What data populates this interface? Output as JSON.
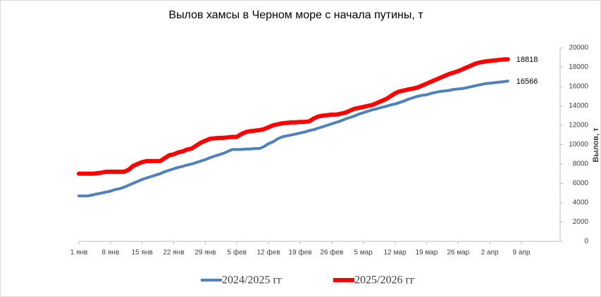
{
  "chart_data": {
    "type": "line",
    "title": "Вылов хамсы в Черном море с начала путины, т",
    "y_label": "Вылов, т",
    "y_axis_side": "right",
    "categories": [
      "1 янв",
      null,
      null,
      null,
      null,
      null,
      null,
      "8 янв",
      null,
      null,
      null,
      null,
      null,
      null,
      "15 янв",
      null,
      null,
      null,
      null,
      null,
      null,
      "22 янв",
      null,
      null,
      null,
      null,
      null,
      null,
      "29 янв",
      null,
      null,
      null,
      null,
      null,
      null,
      "5 фев",
      null,
      null,
      null,
      null,
      null,
      null,
      "12 фев",
      null,
      null,
      null,
      null,
      null,
      null,
      "19 фев",
      null,
      null,
      null,
      null,
      null,
      null,
      "26 фев",
      null,
      null,
      null,
      null,
      null,
      null,
      "5 мар",
      null,
      null,
      null,
      null,
      null,
      null,
      "12 мар",
      null,
      null,
      null,
      null,
      null,
      null,
      "19 мар",
      null,
      null,
      null,
      null,
      null,
      null,
      "26 мар",
      null,
      null,
      null,
      null,
      null,
      null,
      "2 апр",
      null,
      null,
      null,
      null,
      null,
      null,
      "9 апр"
    ],
    "series": [
      {
        "name": "2024/2025 гг",
        "color": "#4f81bd",
        "width": 4,
        "values": [
          4700,
          4700,
          4700,
          4800,
          4900,
          5000,
          5100,
          5200,
          5350,
          5450,
          5600,
          5800,
          6000,
          6200,
          6400,
          6550,
          6700,
          6850,
          7000,
          7200,
          7350,
          7500,
          7650,
          7750,
          7900,
          8000,
          8150,
          8300,
          8450,
          8650,
          8800,
          8950,
          9100,
          9300,
          9500,
          9500,
          9500,
          9550,
          9550,
          9600,
          9600,
          9800,
          10100,
          10300,
          10600,
          10800,
          10900,
          11000,
          11100,
          11200,
          11300,
          11450,
          11550,
          11700,
          11850,
          12000,
          12150,
          12300,
          12450,
          12650,
          12800,
          12950,
          13150,
          13300,
          13450,
          13600,
          13700,
          13850,
          13950,
          14100,
          14200,
          14350,
          14500,
          14700,
          14850,
          15000,
          15100,
          15150,
          15300,
          15400,
          15500,
          15550,
          15600,
          15700,
          15750,
          15800,
          15900,
          16000,
          16100,
          16200,
          16300,
          16350,
          16400,
          16450,
          16500,
          16566,
          null,
          null,
          null
        ]
      },
      {
        "name": "2025/2026 гг",
        "color": "#ff0000",
        "width": 6,
        "values": [
          7000,
          7000,
          7000,
          7000,
          7050,
          7100,
          7200,
          7200,
          7200,
          7200,
          7200,
          7400,
          7800,
          8000,
          8200,
          8300,
          8300,
          8300,
          8300,
          8600,
          8900,
          9000,
          9200,
          9300,
          9500,
          9600,
          9900,
          10200,
          10400,
          10600,
          10650,
          10700,
          10700,
          10750,
          10800,
          10800,
          11100,
          11300,
          11400,
          11450,
          11500,
          11600,
          11800,
          12000,
          12100,
          12200,
          12250,
          12300,
          12300,
          12350,
          12350,
          12400,
          12700,
          12900,
          13000,
          13050,
          13100,
          13100,
          13200,
          13300,
          13500,
          13700,
          13800,
          13900,
          14000,
          14100,
          14300,
          14500,
          14700,
          15000,
          15300,
          15500,
          15600,
          15700,
          15800,
          15900,
          16100,
          16300,
          16500,
          16700,
          16900,
          17100,
          17300,
          17450,
          17600,
          17800,
          18000,
          18200,
          18400,
          18500,
          18600,
          18650,
          18700,
          18750,
          18800,
          18818,
          null,
          null,
          null
        ]
      }
    ],
    "ylim": [
      0,
      20000
    ],
    "yticks": [
      0,
      2000,
      4000,
      6000,
      8000,
      10000,
      12000,
      14000,
      16000,
      18000,
      20000
    ],
    "grid": false,
    "legend": "bottom"
  }
}
